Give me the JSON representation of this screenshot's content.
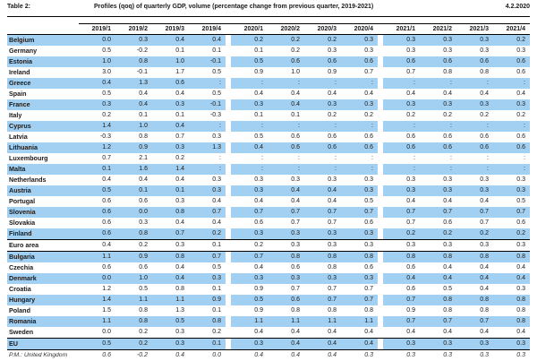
{
  "header": {
    "table_label": "Table 2:",
    "title": "Profiles (qoq) of quarterly GDP, volume (percentage change from previous quarter, 2019-2021)",
    "date": "4.2.2020"
  },
  "colors": {
    "row_band_blue": "#a2d0f2",
    "rule_black": "#000000"
  },
  "table": {
    "columns": [
      "2019/1",
      "2019/2",
      "2019/3",
      "2019/4",
      "2020/1",
      "2020/2",
      "2020/3",
      "2020/4",
      "2021/1",
      "2021/2",
      "2021/3",
      "2021/4"
    ],
    "rows": [
      {
        "name": "Belgium",
        "shaded": true,
        "values": [
          "0.0",
          "0.3",
          "0.4",
          "0.4",
          "0.2",
          "0.2",
          "0.2",
          "0.3",
          "0.3",
          "0.3",
          "0.3",
          "0.2"
        ]
      },
      {
        "name": "Germany",
        "shaded": false,
        "values": [
          "0.5",
          "-0.2",
          "0.1",
          "0.1",
          "0.1",
          "0.2",
          "0.3",
          "0.3",
          "0.3",
          "0.3",
          "0.3",
          "0.3"
        ]
      },
      {
        "name": "Estonia",
        "shaded": true,
        "values": [
          "1.0",
          "0.8",
          "1.0",
          "-0.1",
          "0.5",
          "0.6",
          "0.6",
          "0.6",
          "0.6",
          "0.6",
          "0.6",
          "0.6"
        ]
      },
      {
        "name": "Ireland",
        "shaded": false,
        "values": [
          "3.0",
          "-0.1",
          "1.7",
          "0.5",
          "0.9",
          "1.0",
          "0.9",
          "0.7",
          "0.7",
          "0.8",
          "0.8",
          "0.6"
        ]
      },
      {
        "name": "Greece",
        "shaded": true,
        "values": [
          "0.4",
          "1.3",
          "0.6",
          ":",
          ":",
          ":",
          ":",
          ":",
          ":",
          ":",
          ":",
          ":"
        ]
      },
      {
        "name": "Spain",
        "shaded": false,
        "values": [
          "0.5",
          "0.4",
          "0.4",
          "0.5",
          "0.4",
          "0.4",
          "0.4",
          "0.4",
          "0.4",
          "0.4",
          "0.4",
          "0.4"
        ]
      },
      {
        "name": "France",
        "shaded": true,
        "values": [
          "0.3",
          "0.4",
          "0.3",
          "-0.1",
          "0.3",
          "0.4",
          "0.3",
          "0.3",
          "0.3",
          "0.3",
          "0.3",
          "0.3"
        ]
      },
      {
        "name": "Italy",
        "shaded": false,
        "values": [
          "0.2",
          "0.1",
          "0.1",
          "-0.3",
          "0.1",
          "0.1",
          "0.2",
          "0.2",
          "0.2",
          "0.2",
          "0.2",
          "0.2"
        ]
      },
      {
        "name": "Cyprus",
        "shaded": true,
        "values": [
          "1.4",
          "1.0",
          "0.4",
          ":",
          ":",
          ":",
          ":",
          ":",
          ":",
          ":",
          ":",
          ":"
        ]
      },
      {
        "name": "Latvia",
        "shaded": false,
        "values": [
          "-0.3",
          "0.8",
          "0.7",
          "0.3",
          "0.5",
          "0.6",
          "0.6",
          "0.6",
          "0.6",
          "0.6",
          "0.6",
          "0.6"
        ]
      },
      {
        "name": "Lithuania",
        "shaded": true,
        "values": [
          "1.2",
          "0.9",
          "0.3",
          "1.3",
          "0.4",
          "0.6",
          "0.6",
          "0.6",
          "0.6",
          "0.6",
          "0.6",
          "0.6"
        ]
      },
      {
        "name": "Luxembourg",
        "shaded": false,
        "values": [
          "0.7",
          "2.1",
          "0.2",
          ":",
          ":",
          ":",
          ":",
          ":",
          ":",
          ":",
          ":",
          ":"
        ]
      },
      {
        "name": "Malta",
        "shaded": true,
        "values": [
          "0.1",
          "1.6",
          "1.4",
          ":",
          ":",
          ":",
          ":",
          ":",
          ":",
          ":",
          ":",
          ":"
        ]
      },
      {
        "name": "Netherlands",
        "shaded": false,
        "values": [
          "0.4",
          "0.4",
          "0.4",
          "0.3",
          "0.3",
          "0.3",
          "0.3",
          "0.3",
          "0.3",
          "0.3",
          "0.3",
          "0.3"
        ]
      },
      {
        "name": "Austria",
        "shaded": true,
        "values": [
          "0.5",
          "0.1",
          "0.1",
          "0.3",
          "0.3",
          "0.4",
          "0.4",
          "0.3",
          "0.3",
          "0.3",
          "0.3",
          "0.3"
        ]
      },
      {
        "name": "Portugal",
        "shaded": false,
        "values": [
          "0.6",
          "0.6",
          "0.3",
          "0.4",
          "0.4",
          "0.4",
          "0.4",
          "0.5",
          "0.4",
          "0.4",
          "0.4",
          "0.5"
        ]
      },
      {
        "name": "Slovenia",
        "shaded": true,
        "values": [
          "0.6",
          "0.0",
          "0.8",
          "0.7",
          "0.7",
          "0.7",
          "0.7",
          "0.7",
          "0.7",
          "0.7",
          "0.7",
          "0.7"
        ]
      },
      {
        "name": "Slovakia",
        "shaded": false,
        "values": [
          "0.6",
          "0.3",
          "0.4",
          "0.4",
          "0.6",
          "0.7",
          "0.7",
          "0.6",
          "0.7",
          "0.6",
          "0.7",
          "0.6"
        ]
      },
      {
        "name": "Finland",
        "shaded": true,
        "values": [
          "0.6",
          "0.8",
          "0.7",
          "0.2",
          "0.3",
          "0.3",
          "0.3",
          "0.3",
          "0.2",
          "0.2",
          "0.2",
          "0.2"
        ]
      },
      {
        "name": "Euro area",
        "shaded": false,
        "rule_top": true,
        "rule_bottom": true,
        "values": [
          "0.4",
          "0.2",
          "0.3",
          "0.1",
          "0.2",
          "0.3",
          "0.3",
          "0.3",
          "0.3",
          "0.3",
          "0.3",
          "0.3"
        ]
      },
      {
        "name": "Bulgaria",
        "shaded": true,
        "values": [
          "1.1",
          "0.9",
          "0.8",
          "0.7",
          "0.7",
          "0.8",
          "0.8",
          "0.8",
          "0.8",
          "0.8",
          "0.8",
          "0.8"
        ]
      },
      {
        "name": "Czechia",
        "shaded": false,
        "values": [
          "0.6",
          "0.6",
          "0.4",
          "0.5",
          "0.4",
          "0.6",
          "0.8",
          "0.6",
          "0.6",
          "0.4",
          "0.4",
          "0.4"
        ]
      },
      {
        "name": "Denmark",
        "shaded": true,
        "values": [
          "0.0",
          "1.0",
          "0.4",
          "0.3",
          "0.3",
          "0.3",
          "0.3",
          "0.3",
          "0.4",
          "0.4",
          "0.4",
          "0.4"
        ]
      },
      {
        "name": "Croatia",
        "shaded": false,
        "values": [
          "1.2",
          "0.5",
          "0.8",
          "0.1",
          "0.9",
          "0.7",
          "0.7",
          "0.7",
          "0.6",
          "0.5",
          "0.4",
          "0.3"
        ]
      },
      {
        "name": "Hungary",
        "shaded": true,
        "values": [
          "1.4",
          "1.1",
          "1.1",
          "0.9",
          "0.5",
          "0.6",
          "0.7",
          "0.7",
          "0.7",
          "0.8",
          "0.8",
          "0.8"
        ]
      },
      {
        "name": "Poland",
        "shaded": false,
        "values": [
          "1.5",
          "0.8",
          "1.3",
          "0.1",
          "0.9",
          "0.8",
          "0.8",
          "0.8",
          "0.9",
          "0.8",
          "0.8",
          "0.8"
        ]
      },
      {
        "name": "Romania",
        "shaded": true,
        "values": [
          "1.1",
          "0.8",
          "0.5",
          "0.8",
          "1.1",
          "1.1",
          "1.1",
          "1.1",
          "0.7",
          "0.7",
          "0.7",
          "0.8"
        ]
      },
      {
        "name": "Sweden",
        "shaded": false,
        "values": [
          "0.0",
          "0.2",
          "0.3",
          "0.2",
          "0.4",
          "0.4",
          "0.4",
          "0.4",
          "0.4",
          "0.4",
          "0.4",
          "0.4"
        ]
      },
      {
        "name": "EU",
        "shaded": true,
        "rule_top": true,
        "rule_bottom": true,
        "values": [
          "0.5",
          "0.2",
          "0.3",
          "0.1",
          "0.3",
          "0.4",
          "0.4",
          "0.4",
          "0.3",
          "0.3",
          "0.3",
          "0.3"
        ]
      },
      {
        "name": "P.M.: United Kingdom",
        "shaded": false,
        "italic": true,
        "rule_bottom": true,
        "values": [
          "0.6",
          "-0.2",
          "0.4",
          "0.0",
          "0.4",
          "0.4",
          "0.4",
          "0.3",
          "0.3",
          "0.3",
          "0.3",
          "0.3"
        ]
      }
    ]
  }
}
